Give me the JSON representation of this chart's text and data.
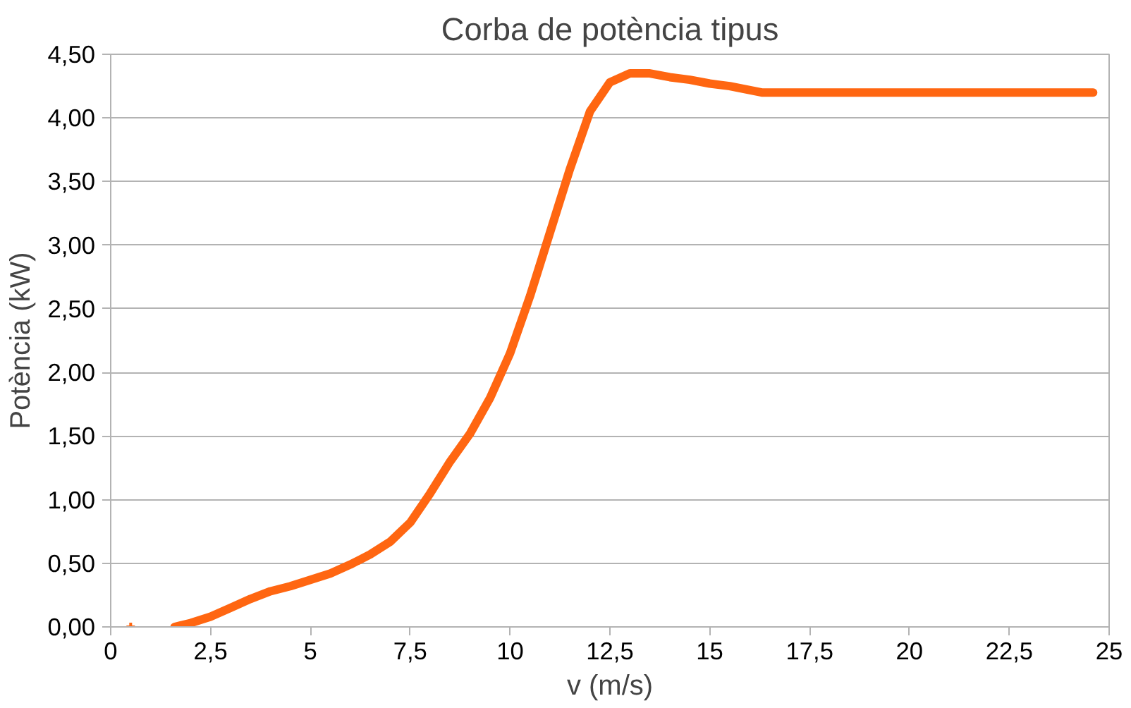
{
  "chart_data": {
    "type": "line",
    "title": "Corba de potència tipus",
    "xlabel": "v (m/s)",
    "ylabel": "Potència (kW)",
    "xlim": [
      0,
      25
    ],
    "xticks": [
      0,
      {
        "value": 2.5,
        "label": "2,5"
      },
      5,
      {
        "value": 7.5,
        "label": "7,5"
      },
      10,
      {
        "value": 12.5,
        "label": "12,5"
      },
      15,
      {
        "value": 17.5,
        "label": "17,5"
      },
      20,
      {
        "value": 22.5,
        "label": "22,5"
      },
      25
    ],
    "ylim": [
      0,
      4.5
    ],
    "yticks": [
      {
        "value": 0,
        "label": "0,00"
      },
      {
        "value": 0.5,
        "label": "0,50"
      },
      {
        "value": 1,
        "label": "1,00"
      },
      {
        "value": 1.5,
        "label": "1,50"
      },
      {
        "value": 2,
        "label": "2,00"
      },
      {
        "value": 2.5,
        "label": "2,50"
      },
      {
        "value": 3,
        "label": "3,00"
      },
      {
        "value": 3.5,
        "label": "3,50"
      },
      {
        "value": 4,
        "label": "4,00"
      },
      {
        "value": 4.5,
        "label": "4,50"
      }
    ],
    "grid": "y",
    "marker": "none",
    "line_style": "solid",
    "series": [
      {
        "color": "#ff6611",
        "x": [
          1.6,
          2.0,
          2.5,
          3.0,
          3.5,
          4.0,
          4.5,
          5.0,
          5.5,
          6.0,
          6.5,
          7.0,
          7.5,
          8.0,
          8.5,
          9.0,
          9.5,
          10.0,
          10.5,
          11.0,
          11.5,
          12.0,
          12.5,
          13.0,
          13.5,
          14.0,
          14.5,
          15.0,
          15.5,
          16.3,
          20.0,
          24.6
        ],
        "values": [
          0.0,
          0.03,
          0.08,
          0.15,
          0.22,
          0.28,
          0.32,
          0.37,
          0.42,
          0.49,
          0.57,
          0.67,
          0.82,
          1.05,
          1.3,
          1.52,
          1.8,
          2.15,
          2.6,
          3.1,
          3.6,
          4.05,
          4.28,
          4.35,
          4.35,
          4.32,
          4.3,
          4.27,
          4.25,
          4.2,
          4.2,
          4.2
        ]
      },
      {
        "type": "scatter",
        "marker": "cross",
        "color": "#ff6611",
        "x": [
          0.5
        ],
        "values": [
          0.0
        ]
      }
    ]
  }
}
